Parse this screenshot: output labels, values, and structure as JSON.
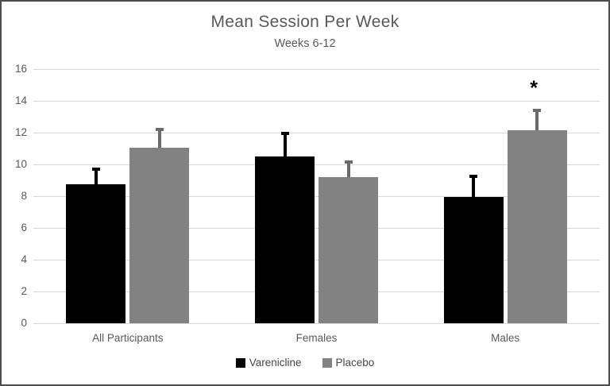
{
  "chart_data": {
    "type": "bar",
    "title": "Mean Session Per Week",
    "subtitle": "Weeks 6-12",
    "categories": [
      "All Participants",
      "Females",
      "Males"
    ],
    "series": [
      {
        "name": "Varenicline",
        "color": "#000000",
        "error_color": "#000000",
        "values": [
          8.75,
          10.5,
          7.95
        ],
        "errors": [
          1.0,
          1.5,
          1.35
        ]
      },
      {
        "name": "Placebo",
        "color": "#828282",
        "error_color": "#6a6a6a",
        "values": [
          11.05,
          9.2,
          12.15
        ],
        "errors": [
          1.2,
          1.0,
          1.3
        ]
      }
    ],
    "annotations": [
      {
        "text": "*",
        "category_index": 2,
        "series_index": 1
      }
    ],
    "y_axis": {
      "min": 0,
      "max": 16,
      "tick_step": 2,
      "ticks": [
        0,
        2,
        4,
        6,
        8,
        10,
        12,
        14,
        16
      ]
    },
    "xlabel": "",
    "ylabel": "",
    "grid": true,
    "legend_position": "bottom",
    "colors": {
      "gridline": "#d9d9d9",
      "axis_text": "#595959",
      "title_text": "#595959",
      "frame_border": "#4d4d4d",
      "background": "#ffffff"
    }
  }
}
